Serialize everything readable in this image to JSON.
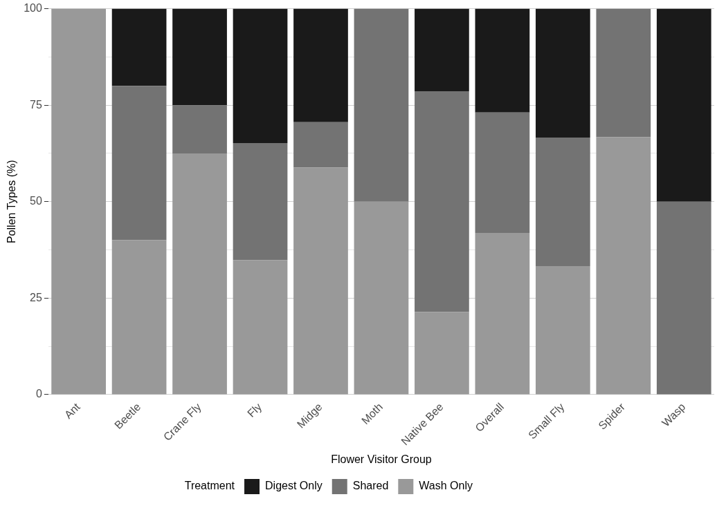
{
  "chart_data": {
    "type": "bar",
    "stacked": true,
    "xlabel": "Flower Visitor Group",
    "ylabel": "Pollen Types (%)",
    "legend_title": "Treatment",
    "legend": "bottom",
    "grid": "y",
    "categories": [
      "Ant",
      "Beetle",
      "Crane Fly",
      "Fly",
      "Midge",
      "Moth",
      "Native Bee",
      "Overall",
      "Small Fly",
      "Spider",
      "Wasp"
    ],
    "series": [
      {
        "name": "Wash Only",
        "color": "#999999",
        "values": [
          100,
          40,
          62.5,
          34.8,
          58.8,
          50,
          21.4,
          41.9,
          33.3,
          66.7,
          0
        ]
      },
      {
        "name": "Shared",
        "color": "#737373",
        "values": [
          0,
          40,
          12.5,
          30.4,
          11.8,
          50,
          57.2,
          31.2,
          33.3,
          33.3,
          50
        ]
      },
      {
        "name": "Digest Only",
        "color": "#1a1a1a",
        "values": [
          0,
          20,
          25,
          34.8,
          29.4,
          0,
          21.4,
          26.9,
          33.4,
          0,
          50
        ]
      }
    ],
    "ylim": [
      0,
      100
    ],
    "yticks": [
      0,
      {
        "value": 12.5,
        "label": null
      },
      25,
      {
        "value": 37.5,
        "label": null
      },
      50,
      {
        "value": 62.5,
        "label": null
      },
      75,
      {
        "value": 87.5,
        "label": null
      },
      100
    ]
  }
}
